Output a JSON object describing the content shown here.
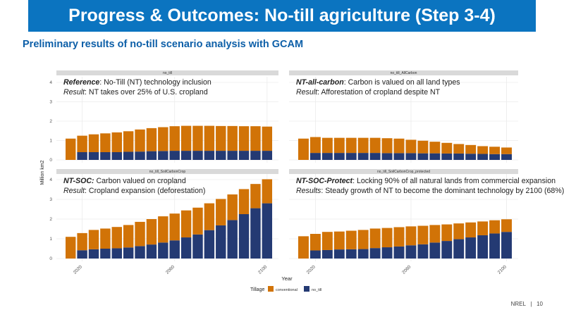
{
  "header": {
    "title": "Progress & Outcomes: No-till agriculture (Step 3-4)",
    "subtitle": "Preliminary results of no-till scenario analysis with GCAM"
  },
  "footer": {
    "org": "NREL",
    "separator": "|",
    "page": "10"
  },
  "colors": {
    "banner": "#0b74c0",
    "conventional": "#d17307",
    "no_till": "#243a73"
  },
  "chart_data": {
    "type": "bar",
    "stacked": true,
    "xlabel": "Year",
    "ylabel": "Million km2",
    "ylim": [
      0,
      4
    ],
    "yticks": [
      "0",
      "1",
      "2",
      "3",
      "4"
    ],
    "xticks": [
      "2020",
      "2060",
      "2100"
    ],
    "grid": true,
    "legend": {
      "title": "Tillage",
      "position": "bottom",
      "entries": [
        "conventional",
        "no_till"
      ]
    },
    "x": [
      2015,
      2020,
      2025,
      2030,
      2035,
      2040,
      2045,
      2050,
      2055,
      2060,
      2065,
      2070,
      2075,
      2080,
      2085,
      2090,
      2095,
      2100
    ],
    "panels": [
      {
        "strip": "no_till",
        "title_bold": "Reference",
        "title_rest": ": No-Till (NT) technology inclusion",
        "result_label": "Result",
        "result_rest": ": NT takes over 25% of U.S. cropland",
        "no_till": [
          0,
          0.4,
          0.4,
          0.4,
          0.4,
          0.42,
          0.43,
          0.45,
          0.46,
          0.47,
          0.47,
          0.47,
          0.47,
          0.47,
          0.47,
          0.47,
          0.47,
          0.47
        ],
        "conventional": [
          1.1,
          0.85,
          0.92,
          0.97,
          1.02,
          1.06,
          1.14,
          1.19,
          1.23,
          1.27,
          1.29,
          1.29,
          1.29,
          1.28,
          1.28,
          1.27,
          1.27,
          1.25
        ]
      },
      {
        "strip": "no_till_AllCarbon",
        "title_bold": "NT-all-carbon",
        "title_rest": ": Carbon is valued on all land types",
        "result_label": "Result",
        "result_rest": ": Afforestation of cropland despite NT",
        "no_till": [
          0,
          0.36,
          0.36,
          0.36,
          0.36,
          0.36,
          0.36,
          0.35,
          0.35,
          0.35,
          0.34,
          0.34,
          0.33,
          0.33,
          0.32,
          0.31,
          0.3,
          0.3
        ],
        "conventional": [
          1.1,
          0.82,
          0.78,
          0.78,
          0.78,
          0.78,
          0.78,
          0.77,
          0.75,
          0.69,
          0.65,
          0.6,
          0.55,
          0.49,
          0.45,
          0.4,
          0.38,
          0.34
        ]
      },
      {
        "strip": "no_till_SoilCarbonCrop",
        "title_bold": "NT-SOC:",
        "title_rest": " Carbon valued on cropland",
        "result_label": "Result",
        "result_rest": ": Cropland expansion (deforestation)",
        "no_till": [
          0,
          0.42,
          0.47,
          0.5,
          0.52,
          0.56,
          0.63,
          0.71,
          0.81,
          0.92,
          1.07,
          1.22,
          1.44,
          1.68,
          1.95,
          2.25,
          2.55,
          2.8
        ],
        "conventional": [
          1.1,
          0.87,
          0.98,
          1.02,
          1.08,
          1.14,
          1.23,
          1.29,
          1.33,
          1.36,
          1.37,
          1.36,
          1.36,
          1.34,
          1.3,
          1.27,
          1.23,
          1.22
        ]
      },
      {
        "strip": "no_till_SoilCarbonCrop_protected",
        "title_bold": "NT-SOC-Protect",
        "title_rest": ": Locking 90% of all natural lands from commercial expansion",
        "result_label": "Results",
        "result_rest": ": Steady growth of NT to become the dominant technology by 2100 (68%)",
        "no_till": [
          0,
          0.41,
          0.43,
          0.46,
          0.47,
          0.48,
          0.53,
          0.57,
          0.61,
          0.67,
          0.72,
          0.81,
          0.89,
          0.98,
          1.07,
          1.18,
          1.27,
          1.35
        ],
        "conventional": [
          1.13,
          0.84,
          0.92,
          0.91,
          0.94,
          0.97,
          0.99,
          0.98,
          0.98,
          0.96,
          0.94,
          0.89,
          0.84,
          0.8,
          0.76,
          0.7,
          0.67,
          0.64
        ]
      }
    ]
  }
}
